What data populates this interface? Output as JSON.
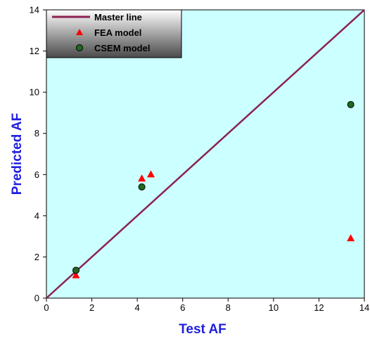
{
  "colors": {
    "plot_background": "#ccffff",
    "master_line": "#8b2252",
    "fea_marker": "#ff0000",
    "csem_marker": "#1e6b1e",
    "axis_title": "#1f1fe0"
  },
  "chart_data": {
    "type": "scatter",
    "title": "",
    "xlabel": "Test AF",
    "ylabel": "Predicted AF",
    "xlim": [
      0,
      14
    ],
    "ylim": [
      0,
      14
    ],
    "xticks": [
      "0",
      "2",
      "4",
      "6",
      "8",
      "10",
      "12",
      "14"
    ],
    "yticks": [
      "0",
      "2",
      "4",
      "6",
      "8",
      "10",
      "12",
      "14"
    ],
    "grid": false,
    "legend_position": "top-left",
    "series": [
      {
        "name": "Master line",
        "kind": "line",
        "x": [
          0,
          14
        ],
        "y": [
          0,
          14
        ]
      },
      {
        "name": "FEA model",
        "kind": "triangle-marker",
        "x": [
          1.3,
          4.2,
          4.6,
          13.4
        ],
        "y": [
          1.1,
          5.8,
          6.0,
          2.9
        ]
      },
      {
        "name": "CSEM model",
        "kind": "circle-marker",
        "x": [
          1.3,
          4.2,
          13.4
        ],
        "y": [
          1.35,
          5.4,
          9.4
        ]
      }
    ]
  }
}
